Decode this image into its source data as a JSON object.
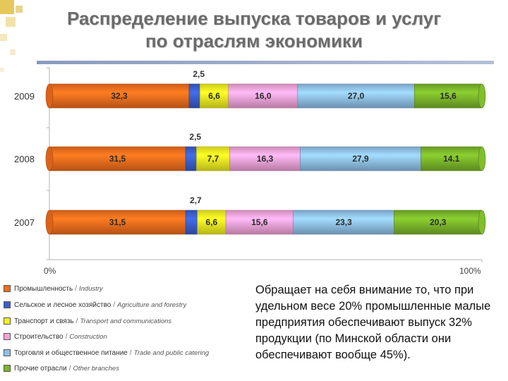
{
  "title_line1": "Распределение выпуска товаров и услуг",
  "title_line2": "по отраслям экономики",
  "chart_data": {
    "type": "bar",
    "orientation": "horizontal",
    "stacked": true,
    "categories": [
      "2009",
      "2008",
      "2007"
    ],
    "series": [
      {
        "name": "Промышленность / Industry",
        "color": "#f26d1d",
        "values": [
          32.3,
          31.5,
          31.5
        ],
        "labels": [
          "32,3",
          "31,5",
          "31,5"
        ]
      },
      {
        "name": "Сельское и лесное хозяйство / Agriculture and forestry",
        "color": "#3a5fcd",
        "values": [
          2.5,
          2.5,
          2.7
        ],
        "labels": [
          "2,5",
          "2,5",
          "2,7"
        ]
      },
      {
        "name": "Транспорт и связь / Transport and communications",
        "color": "#f2f020",
        "values": [
          6.6,
          7.7,
          6.6
        ],
        "labels": [
          "6,6",
          "7,7",
          "6,6"
        ]
      },
      {
        "name": "Строительство / Construction",
        "color": "#f5a3d8",
        "values": [
          16.0,
          16.3,
          15.6
        ],
        "labels": [
          "16,0",
          "16,3",
          "15,6"
        ]
      },
      {
        "name": "Торговля и общественное питание / Trade and public catering",
        "color": "#8fc0ea",
        "values": [
          27.0,
          27.9,
          23.3
        ],
        "labels": [
          "27,0",
          "27,9",
          "23,3"
        ]
      },
      {
        "name": "Прочие отрасли / Other branches",
        "color": "#7ab52a",
        "values": [
          15.6,
          14.1,
          20.3
        ],
        "labels": [
          "15,6",
          "14.1",
          "20,3"
        ]
      }
    ],
    "x_tick_labels": [
      "0%",
      "100%"
    ],
    "xlim": [
      0,
      100
    ]
  },
  "legend": [
    {
      "ru": "Промышленность",
      "en": "Industry",
      "color": "#f26d1d"
    },
    {
      "ru": "Сельское и лесное хозяйство",
      "en": "Agriculture and forestry",
      "color": "#3a5fcd"
    },
    {
      "ru": "Транспорт и связь",
      "en": "Transport and communications",
      "color": "#f2f020"
    },
    {
      "ru": "Строительство",
      "en": "Construction",
      "color": "#f5a3d8"
    },
    {
      "ru": "Торговля и общественное питание",
      "en": "Trade and public catering",
      "color": "#8fc0ea"
    },
    {
      "ru": "Прочие отрасли",
      "en": "Other branches",
      "color": "#7ab52a"
    }
  ],
  "note_text": "Обращает на себя внимание то, что при удельном весе 20% промышленные малые предприятия обеспечивают выпуск 32% продукции (по Минской области они обеспечивают вообще 45%)."
}
